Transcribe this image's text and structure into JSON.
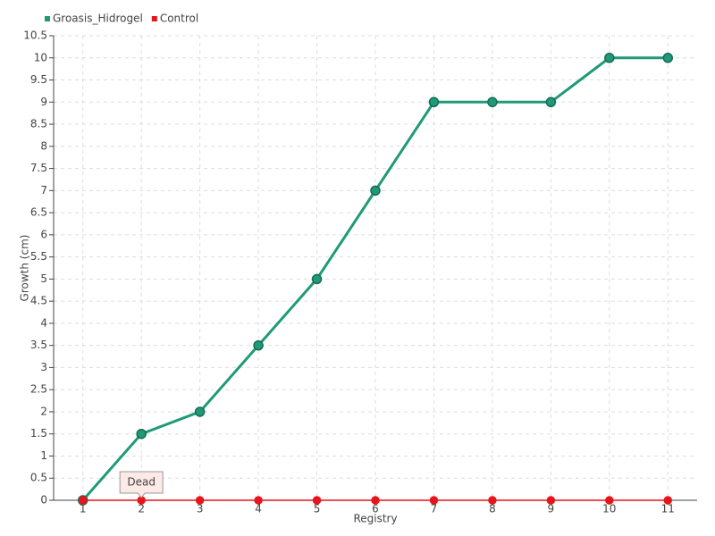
{
  "chart_data": {
    "type": "line",
    "x_label": "Registry",
    "y_label": "Growth (cm)",
    "categories": [
      "1",
      "2",
      "3",
      "4",
      "5",
      "6",
      "7",
      "8",
      "9",
      "10",
      "11"
    ],
    "series": [
      {
        "name": "Groasis_Hidrogel",
        "color": "#1f9a78",
        "values": [
          0,
          1.5,
          2,
          3.5,
          5,
          7,
          9,
          9,
          9,
          10,
          10
        ]
      },
      {
        "name": "Control",
        "color": "#e8141c",
        "values": [
          0,
          0,
          0,
          0,
          0,
          0,
          0,
          0,
          0,
          0,
          0
        ]
      }
    ],
    "annotation": "Dead",
    "ylim": [
      0,
      10.5
    ],
    "yticks": [
      0,
      0.5,
      1,
      1.5,
      2,
      2.5,
      3,
      3.5,
      4,
      4.5,
      5,
      5.5,
      6,
      6.5,
      7,
      7.5,
      8,
      8.5,
      9,
      9.5,
      10,
      10.5
    ],
    "grid": true,
    "legend": "top-left"
  }
}
